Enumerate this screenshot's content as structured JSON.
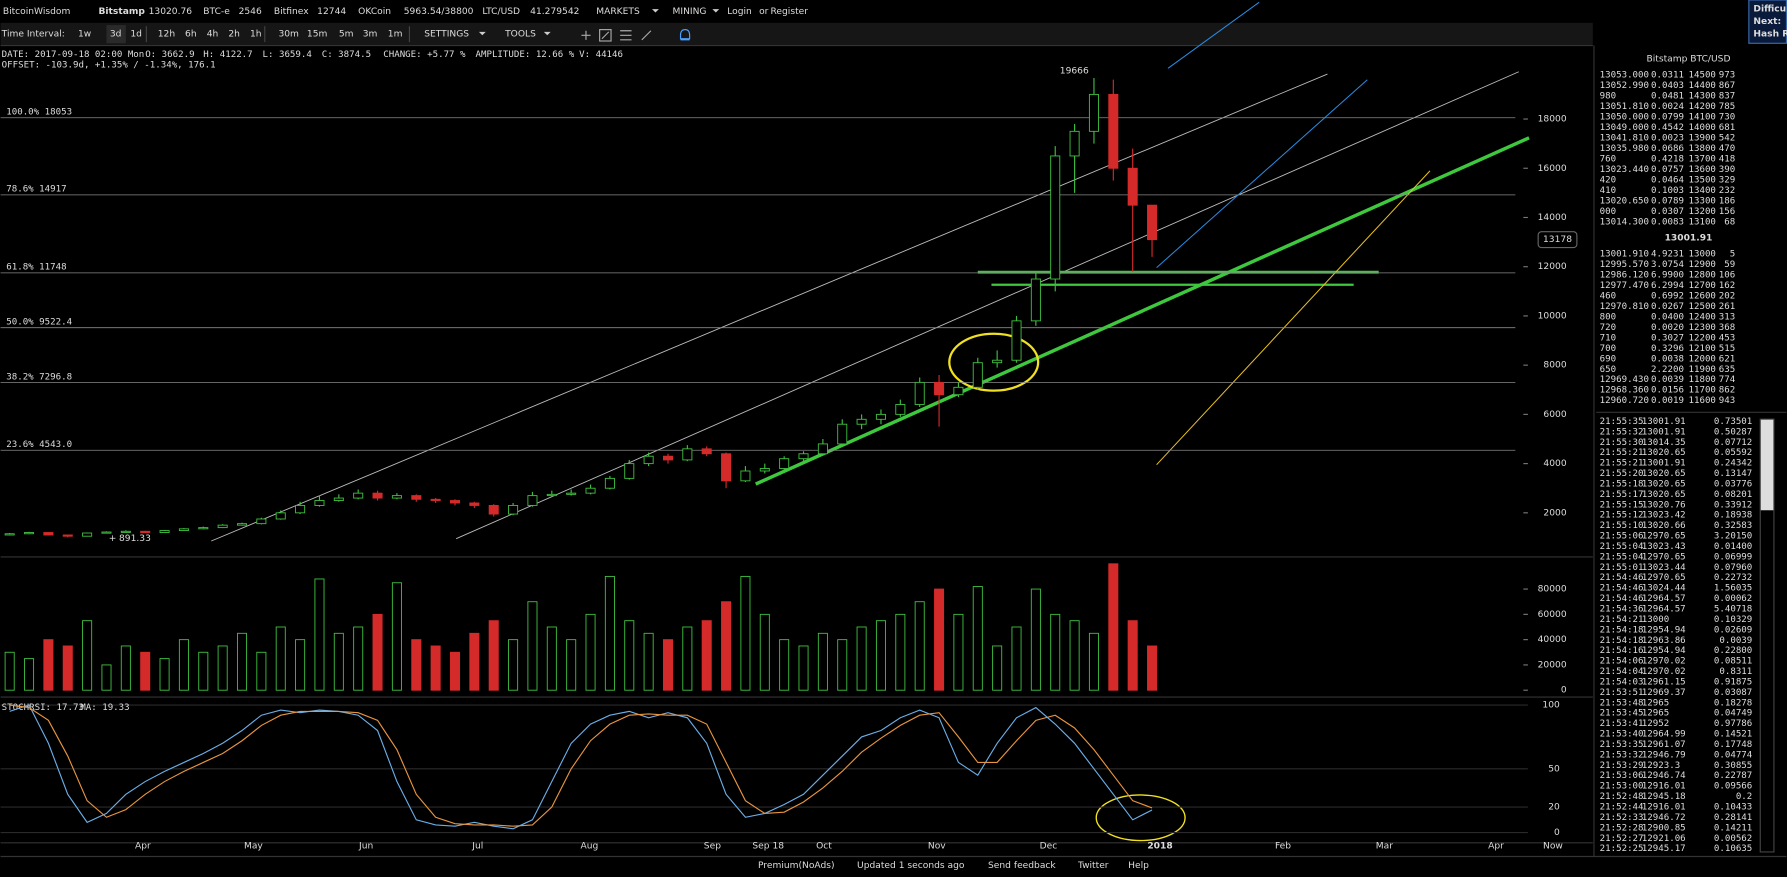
{
  "header": {
    "logo": "BitcoinWisdom",
    "tickers": [
      {
        "name": "Bitstamp",
        "value": "13020.76"
      },
      {
        "name": "BTC-e",
        "value": "2546"
      },
      {
        "name": "Bitfinex",
        "value": "12744"
      },
      {
        "name": "OKCoin",
        "value": "5963.54/38800"
      },
      {
        "name": "LTC/USD",
        "value": "41.279542"
      }
    ],
    "menus": [
      "MARKETS",
      "MINING"
    ],
    "login": "Login",
    "or": "or",
    "register": "Register",
    "side_info": [
      "Difficu",
      "Next:",
      "Hash R"
    ]
  },
  "toolbar": {
    "label": "Time Interval:",
    "intervals": [
      "1w",
      "3d",
      "1d",
      "12h",
      "6h",
      "4h",
      "2h",
      "1h",
      "30m",
      "15m",
      "5m",
      "3m",
      "1m"
    ],
    "active_interval": 1,
    "settings": "SETTINGS",
    "tools": "TOOLS"
  },
  "info": {
    "line1": [
      "DATE: 2017-09-18 02:00 Mon",
      "O: 3662.9",
      "H: 4122.7",
      "L: 3659.4",
      "C: 3874.5",
      "CHANGE: +5.77 %",
      "AMPLITUDE: 12.66 %",
      "V: 44146"
    ],
    "line2": "OFFSET: -103.9d, +1.35% / -1.34%, 176.1"
  },
  "chart": {
    "up_color": "#3fbf3f",
    "down_color": "#d42a2a",
    "ylim": [
      300,
      20800
    ],
    "yticks": [
      2000,
      4000,
      6000,
      8000,
      10000,
      12000,
      14000,
      16000,
      18000
    ],
    "open": [
      1100,
      1150,
      1200,
      1100,
      1050,
      1180,
      1220,
      1250,
      1200,
      1280,
      1350,
      1400,
      1500,
      1560,
      1750,
      2000,
      2300,
      2500,
      2600,
      2800,
      2600,
      2700,
      2550,
      2500,
      2400,
      2300,
      1950,
      2300,
      2700,
      2750,
      2800,
      3000,
      3400,
      4000,
      4300,
      4150,
      4600,
      4400,
      3300,
      3700,
      3800,
      4200,
      4400,
      4800,
      5600,
      5800,
      6000,
      6400,
      7300,
      6800,
      7100,
      8100,
      8200,
      9800,
      11500,
      16500,
      17500,
      19000,
      16000,
      14500
    ],
    "high": [
      1180,
      1230,
      1220,
      1120,
      1200,
      1250,
      1290,
      1270,
      1300,
      1380,
      1440,
      1540,
      1600,
      1800,
      2100,
      2450,
      2700,
      2750,
      2950,
      2900,
      2800,
      2750,
      2600,
      2550,
      2450,
      2350,
      2400,
      2850,
      2900,
      2950,
      3150,
      3500,
      4150,
      4450,
      4400,
      4750,
      4700,
      4450,
      3900,
      4000,
      4300,
      4500,
      5000,
      5800,
      6000,
      6200,
      6600,
      7500,
      7600,
      7300,
      8300,
      8600,
      10000,
      11800,
      16900,
      17800,
      19666,
      19600,
      16800,
      14500
    ],
    "low": [
      1080,
      1130,
      1080,
      1000,
      1040,
      1160,
      1200,
      1180,
      1190,
      1260,
      1330,
      1380,
      1480,
      1530,
      1720,
      1950,
      2250,
      2450,
      2550,
      2500,
      2550,
      2450,
      2400,
      2300,
      2200,
      1850,
      1900,
      2250,
      2650,
      2700,
      2750,
      2950,
      3350,
      3900,
      4000,
      4100,
      4300,
      3000,
      3250,
      3600,
      3750,
      4100,
      4350,
      4750,
      5400,
      5600,
      5900,
      6300,
      5500,
      6700,
      7000,
      7900,
      8100,
      9600,
      11000,
      15000,
      17000,
      15500,
      11800,
      12400
    ],
    "close": [
      1150,
      1200,
      1100,
      1050,
      1180,
      1220,
      1250,
      1200,
      1280,
      1350,
      1400,
      1500,
      1560,
      1750,
      2000,
      2300,
      2500,
      2600,
      2800,
      2600,
      2700,
      2550,
      2500,
      2400,
      2300,
      1950,
      2300,
      2700,
      2750,
      2800,
      3000,
      3400,
      4000,
      4300,
      4150,
      4600,
      4400,
      3300,
      3700,
      3800,
      4200,
      4400,
      4800,
      5600,
      5800,
      6000,
      6400,
      7300,
      6800,
      7100,
      8100,
      8200,
      9800,
      11500,
      16500,
      17500,
      19000,
      16000,
      14500,
      13100
    ],
    "fib_levels": [
      {
        "label": "100.0% 18053",
        "value": 18053
      },
      {
        "label": "78.6% 14917",
        "value": 14917
      },
      {
        "label": "61.8% 11748",
        "value": 11748
      },
      {
        "label": "50.0% 9522.4",
        "value": 9522.4
      },
      {
        "label": "38.2% 7296.8",
        "value": 7296.8
      },
      {
        "label": "23.6% 4543.0",
        "value": 4543
      }
    ],
    "high_label": "19666",
    "low_label": "891.33",
    "current_price_label": "13178",
    "volume": {
      "ylim": [
        0,
        100000
      ],
      "yticks": [
        0,
        20000,
        40000,
        60000,
        80000
      ],
      "values": [
        30000,
        25000,
        40000,
        35000,
        55000,
        20000,
        35000,
        30000,
        25000,
        40000,
        30000,
        35000,
        45000,
        30000,
        50000,
        40000,
        88000,
        45000,
        50000,
        60000,
        85000,
        40000,
        35000,
        30000,
        45000,
        55000,
        40000,
        70000,
        50000,
        40000,
        60000,
        90000,
        55000,
        45000,
        40000,
        50000,
        55000,
        70000,
        90000,
        60000,
        40000,
        35000,
        45000,
        40000,
        50000,
        55000,
        60000,
        70000,
        80000,
        60000,
        82000,
        35000,
        50000,
        80000,
        60000,
        55000,
        45000,
        100000,
        55000,
        35000
      ]
    },
    "stochrsi": {
      "title": "STOCHRSI: 17.73",
      "ma_title": "MA: 19.33",
      "ylim": [
        0,
        100
      ],
      "yticks": [
        0,
        20,
        50,
        100
      ],
      "series": [
        {
          "color": "#6aaee8",
          "values": [
            95,
            100,
            70,
            30,
            8,
            15,
            30,
            40,
            48,
            55,
            62,
            70,
            80,
            92,
            96,
            94,
            96,
            95,
            92,
            80,
            40,
            10,
            6,
            5,
            8,
            5,
            3,
            10,
            40,
            70,
            85,
            92,
            95,
            90,
            94,
            90,
            70,
            30,
            12,
            15,
            22,
            30,
            45,
            60,
            75,
            80,
            90,
            96,
            90,
            55,
            45,
            70,
            90,
            98,
            85,
            70,
            50,
            30,
            10,
            17.73
          ]
        },
        {
          "color": "#e89440",
          "values": [
            100,
            98,
            88,
            60,
            25,
            12,
            18,
            30,
            40,
            48,
            55,
            62,
            72,
            84,
            92,
            95,
            95,
            95,
            94,
            88,
            65,
            30,
            12,
            7,
            6,
            6,
            5,
            6,
            20,
            50,
            72,
            85,
            92,
            93,
            92,
            92,
            85,
            55,
            25,
            15,
            16,
            24,
            35,
            48,
            63,
            74,
            84,
            92,
            94,
            75,
            55,
            55,
            72,
            88,
            92,
            82,
            65,
            45,
            25,
            19.33
          ]
        }
      ]
    },
    "x_labels": [
      "Apr",
      "May",
      "Jun",
      "Jul",
      "Aug",
      "Sep",
      "Sep 18",
      "Oct",
      "Nov",
      "Dec",
      "2018",
      "Feb",
      "Mar",
      "Apr",
      "Now"
    ]
  },
  "orderbook": {
    "title": "Bitstamp BTC/USD",
    "asks": [
      [
        "13053.000",
        "0.0311",
        "14500",
        "973"
      ],
      [
        "13052.990",
        "0.0403",
        "14400",
        "867"
      ],
      [
        "980",
        "0.0481",
        "14300",
        "837"
      ],
      [
        "13051.810",
        "0.0024",
        "14200",
        "785"
      ],
      [
        "13050.000",
        "0.0799",
        "14100",
        "730"
      ],
      [
        "13049.000",
        "0.4542",
        "14000",
        "681"
      ],
      [
        "13041.810",
        "0.0023",
        "13900",
        "542"
      ],
      [
        "13035.980",
        "0.0686",
        "13800",
        "470"
      ],
      [
        "760",
        "0.4218",
        "13700",
        "418"
      ],
      [
        "13023.440",
        "0.0757",
        "13600",
        "390"
      ],
      [
        "420",
        "0.0464",
        "13500",
        "329"
      ],
      [
        "410",
        "0.1003",
        "13400",
        "232"
      ],
      [
        "13020.650",
        "0.0789",
        "13300",
        "186"
      ],
      [
        "000",
        "0.0307",
        "13200",
        "156"
      ],
      [
        "13014.300",
        "0.0083",
        "13100",
        "68"
      ]
    ],
    "last": "13001.91",
    "bids": [
      [
        "13001.910",
        "4.9231",
        "13000",
        "5"
      ],
      [
        "12995.570",
        "3.0754",
        "12900",
        "59"
      ],
      [
        "12986.120",
        "6.9900",
        "12800",
        "106"
      ],
      [
        "12977.470",
        "6.2994",
        "12700",
        "162"
      ],
      [
        "460",
        "0.6992",
        "12600",
        "202"
      ],
      [
        "12970.810",
        "0.0267",
        "12500",
        "261"
      ],
      [
        "800",
        "0.0400",
        "12400",
        "313"
      ],
      [
        "720",
        "0.0020",
        "12300",
        "368"
      ],
      [
        "710",
        "0.3027",
        "12200",
        "453"
      ],
      [
        "700",
        "0.3296",
        "12100",
        "515"
      ],
      [
        "690",
        "0.0038",
        "12000",
        "621"
      ],
      [
        "650",
        "2.2200",
        "11900",
        "635"
      ],
      [
        "12969.430",
        "0.0039",
        "11800",
        "774"
      ],
      [
        "12968.360",
        "0.0156",
        "11700",
        "862"
      ],
      [
        "12960.720",
        "0.0019",
        "11600",
        "943"
      ]
    ]
  },
  "trades": [
    {
      "time": "21:55:35",
      "price": "13001.91",
      "amount": "0.73501",
      "color": "#e04040"
    },
    {
      "time": "21:55:32",
      "price": "13001.91",
      "amount": "0.50287",
      "color": "#e04040"
    },
    {
      "time": "21:55:30",
      "price": "13014.35",
      "amount": "0.07712",
      "color": "#3fbf3f"
    },
    {
      "time": "21:55:21",
      "price": "13020.65",
      "amount": "0.05592",
      "color": "#3fbf3f"
    },
    {
      "time": "21:55:21",
      "price": "13001.91",
      "amount": "0.24342",
      "color": "#e04040"
    },
    {
      "time": "21:55:20",
      "price": "13020.65",
      "amount": "0.13147",
      "color": "#3fbf3f"
    },
    {
      "time": "21:55:18",
      "price": "13020.65",
      "amount": "0.03776",
      "color": "#3fbf3f"
    },
    {
      "time": "21:55:17",
      "price": "13020.65",
      "amount": "0.08201",
      "color": "#e04040"
    },
    {
      "time": "21:55:15",
      "price": "13020.76",
      "amount": "0.33912",
      "color": "#3fbf3f"
    },
    {
      "time": "21:55:12",
      "price": "13023.42",
      "amount": "0.18938",
      "color": "#3fbf3f"
    },
    {
      "time": "21:55:10",
      "price": "13020.66",
      "amount": "0.32583",
      "color": "#3fbf3f"
    },
    {
      "time": "21:55:06",
      "price": "12970.65",
      "amount": "3.20150",
      "color": "#e04040"
    },
    {
      "time": "21:55:04",
      "price": "13023.43",
      "amount": "0.01400",
      "color": "#3fbf3f"
    },
    {
      "time": "21:55:04",
      "price": "12970.65",
      "amount": "0.06999",
      "color": "#e04040"
    },
    {
      "time": "21:55:01",
      "price": "13023.44",
      "amount": "0.07960",
      "color": "#3fbf3f"
    },
    {
      "time": "21:54:46",
      "price": "12970.65",
      "amount": "0.22732",
      "color": "#e04040"
    },
    {
      "time": "21:54:46",
      "price": "13024.44",
      "amount": "1.56035",
      "color": "#3fbf3f"
    },
    {
      "time": "21:54:46",
      "price": "12964.57",
      "amount": "0.00062",
      "color": "#e04040"
    },
    {
      "time": "21:54:36",
      "price": "12964.57",
      "amount": "5.40718",
      "color": "#e04040"
    },
    {
      "time": "21:54:21",
      "price": "13000",
      "amount": "0.10329",
      "color": "#3fbf3f"
    },
    {
      "time": "21:54:18",
      "price": "12954.94",
      "amount": "0.02609",
      "color": "#e04040"
    },
    {
      "time": "21:54:18",
      "price": "12963.86",
      "amount": "0.0039",
      "color": "#3fbf3f"
    },
    {
      "time": "21:54:16",
      "price": "12954.94",
      "amount": "0.22800",
      "color": "#e04040"
    },
    {
      "time": "21:54:06",
      "price": "12970.02",
      "amount": "0.08511",
      "color": "#3fbf3f"
    },
    {
      "time": "21:54:04",
      "price": "12970.02",
      "amount": "0.8311",
      "color": "#3fbf3f"
    },
    {
      "time": "21:54:03",
      "price": "12961.15",
      "amount": "0.91875",
      "color": "#e04040"
    },
    {
      "time": "21:53:51",
      "price": "12969.37",
      "amount": "0.03087",
      "color": "#3fbf3f"
    },
    {
      "time": "21:53:48",
      "price": "12965",
      "amount": "0.18278",
      "color": "#3fbf3f"
    },
    {
      "time": "21:53:45",
      "price": "12965",
      "amount": "0.04749",
      "color": "#3fbf3f"
    },
    {
      "time": "21:53:41",
      "price": "12952",
      "amount": "0.97786",
      "color": "#e04040"
    },
    {
      "time": "21:53:40",
      "price": "12964.99",
      "amount": "0.14521",
      "color": "#3fbf3f"
    },
    {
      "time": "21:53:35",
      "price": "12961.07",
      "amount": "0.17748",
      "color": "#3fbf3f"
    },
    {
      "time": "21:53:32",
      "price": "12946.79",
      "amount": "0.04774",
      "color": "#3fbf3f"
    },
    {
      "time": "21:53:29",
      "price": "12923.3",
      "amount": "0.30855",
      "color": "#e04040"
    },
    {
      "time": "21:53:06",
      "price": "12946.74",
      "amount": "0.22787",
      "color": "#3fbf3f"
    },
    {
      "time": "21:53:00",
      "price": "12916.01",
      "amount": "0.09566",
      "color": "#e04040"
    },
    {
      "time": "21:52:48",
      "price": "12945.18",
      "amount": "0.2",
      "color": "#3fbf3f"
    },
    {
      "time": "21:52:44",
      "price": "12916.01",
      "amount": "0.10433",
      "color": "#e04040"
    },
    {
      "time": "21:52:33",
      "price": "12946.72",
      "amount": "0.28141",
      "color": "#3fbf3f"
    },
    {
      "time": "21:52:28",
      "price": "12900.85",
      "amount": "0.14211",
      "color": "#e04040"
    },
    {
      "time": "21:52:27",
      "price": "12921.06",
      "amount": "0.00562",
      "color": "#3fbf3f"
    },
    {
      "time": "21:52:25",
      "price": "12945.17",
      "amount": "0.10635",
      "color": "#3fbf3f"
    }
  ],
  "footer": {
    "links": [
      "Premium(NoAds)",
      "Updated 1 seconds ago",
      "Send feedback",
      "Twitter",
      "Help"
    ]
  }
}
